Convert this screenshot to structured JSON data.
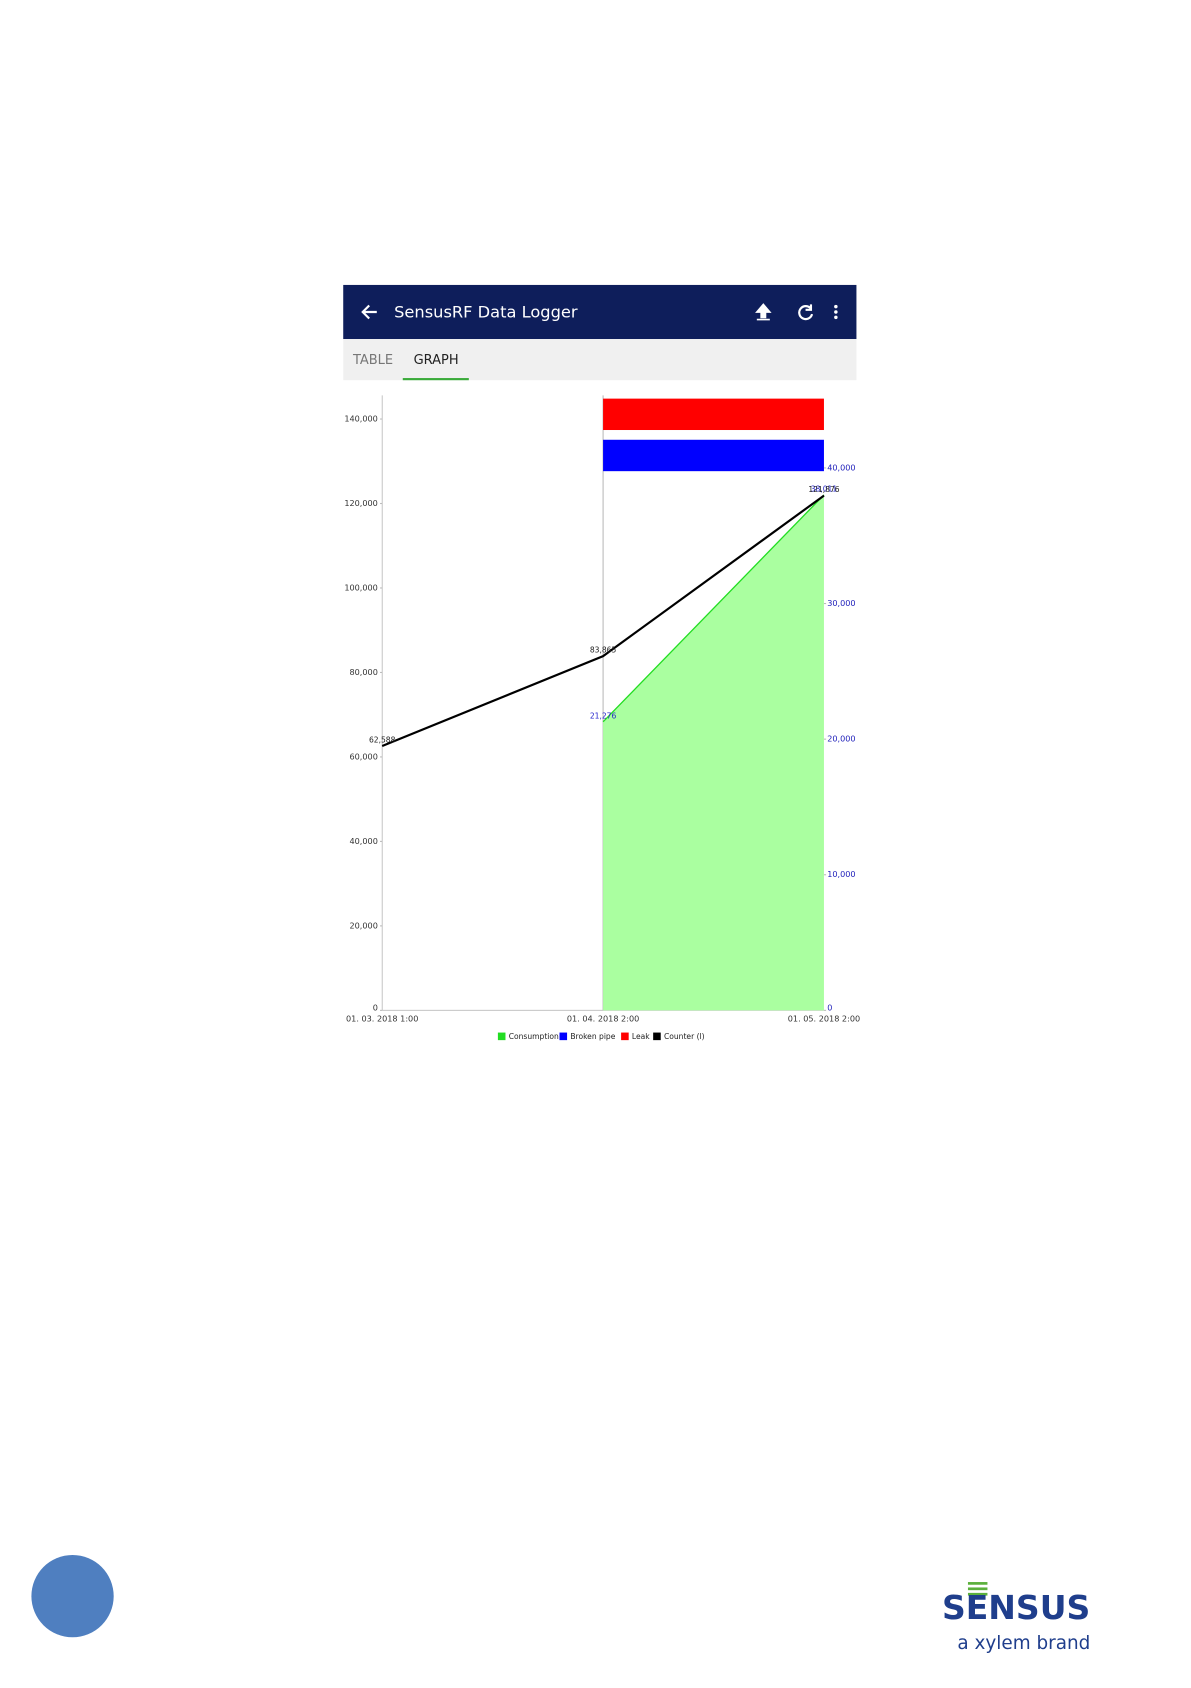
{
  "app": {
    "title": "SensusRF Data Logger",
    "tabs": [
      "TABLE",
      "GRAPH"
    ]
  },
  "chart_data": {
    "type": "line",
    "categories": [
      "01. 03. 2018 1:00",
      "01. 04. 2018 2:00",
      "01. 05. 2018 2:00"
    ],
    "series": [
      {
        "name": "Consumption",
        "type": "area",
        "color": "#22dd22",
        "fill": "#aaffa0",
        "axis": "y2",
        "values": [
          null,
          21276,
          38011
        ],
        "value_labels": [
          null,
          "21,276",
          "38,011"
        ]
      },
      {
        "name": "Broken pipe",
        "type": "band",
        "color": "#0000ff",
        "values": [
          null,
          1,
          1
        ]
      },
      {
        "name": "Leak",
        "type": "band",
        "color": "#ff0000",
        "values": [
          null,
          1,
          1
        ]
      },
      {
        "name": "Counter (l)",
        "type": "line",
        "color": "#000000",
        "values": [
          62588,
          83865,
          121876
        ],
        "value_labels": [
          "62,588",
          "83,865",
          "121,876"
        ]
      }
    ],
    "ylim": [
      0,
      145600
    ],
    "yticks": [
      0,
      {
        "value": 20000,
        "label": "20,000"
      },
      {
        "value": 40000,
        "label": "40,000"
      },
      {
        "value": 60000,
        "label": "60,000"
      },
      {
        "value": 80000,
        "label": "80,000"
      },
      {
        "value": 100000,
        "label": "100,000"
      },
      {
        "value": 120000,
        "label": "120,000"
      },
      {
        "value": 140000,
        "label": "140,000"
      }
    ],
    "y2lim": [
      0,
      45350
    ],
    "y2ticks": [
      0,
      {
        "value": 10000,
        "label": "10,000"
      },
      {
        "value": 20000,
        "label": "20,000"
      },
      {
        "value": 30000,
        "label": "30,000"
      },
      {
        "value": 40000,
        "label": "40,000"
      }
    ]
  },
  "logo": {
    "brand": "SENSUS",
    "tagline": "a xylem brand"
  }
}
